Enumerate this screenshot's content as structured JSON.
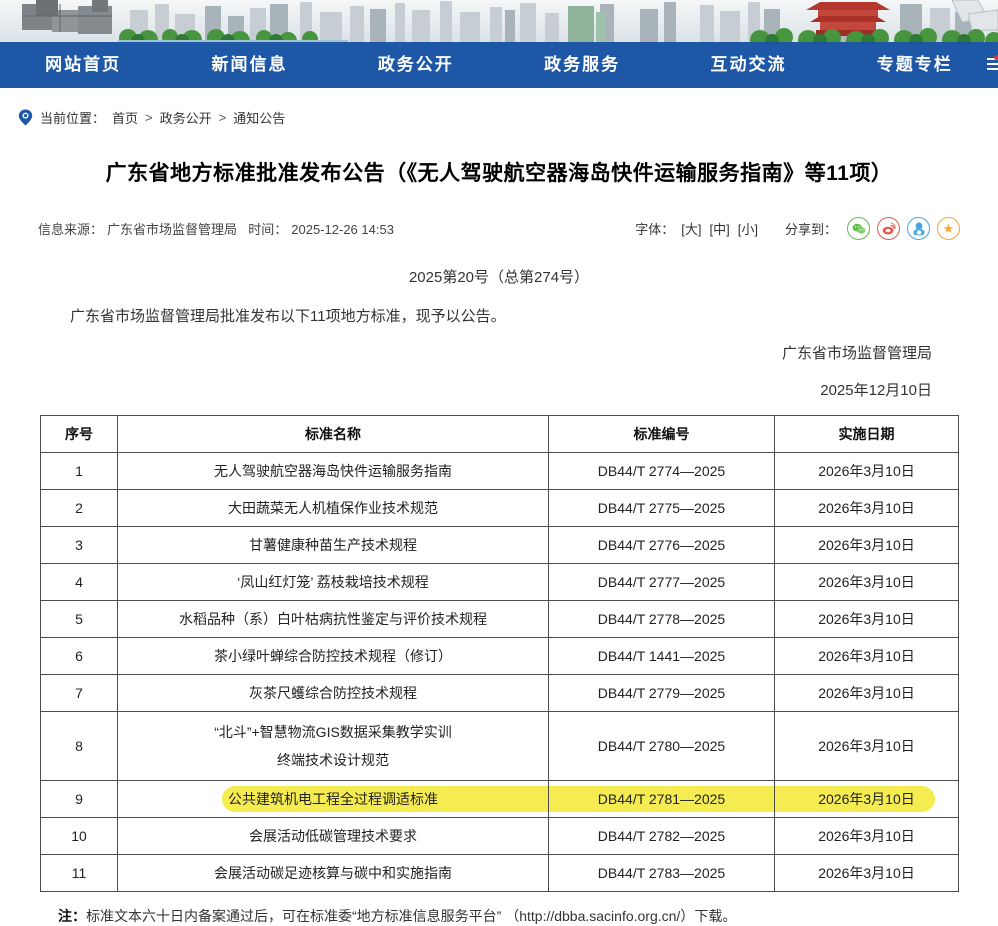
{
  "nav": {
    "items": [
      {
        "label": "网站首页"
      },
      {
        "label": "新闻信息"
      },
      {
        "label": "政务公开"
      },
      {
        "label": "政务服务"
      },
      {
        "label": "互动交流"
      },
      {
        "label": "专题专栏"
      }
    ]
  },
  "breadcrumb": {
    "prefix": "当前位置：",
    "items": [
      "首页",
      "政务公开",
      "通知公告"
    ],
    "separator": ">"
  },
  "article": {
    "title": "广东省地方标准批准发布公告（《无人驾驶航空器海岛快件运输服务指南》等11项）",
    "source_label": "信息来源：",
    "source": "广东省市场监督管理局",
    "time_label": "时间：",
    "time": "2025-12-26 14:53",
    "font_label": "字体：",
    "font_options": [
      "[大]",
      "[中]",
      "[小]"
    ],
    "share_label": "分享到：",
    "share_icons": [
      {
        "name": "wechat",
        "color": "#5fbe4a"
      },
      {
        "name": "weibo",
        "color": "#e6584c"
      },
      {
        "name": "qq",
        "color": "#45a6e3"
      },
      {
        "name": "qzone",
        "color": "#f0a830"
      }
    ],
    "doc_number": "2025第20号（总第274号）",
    "body": "广东省市场监督管理局批准发布以下11项地方标准，现予以公告。",
    "signature": "广东省市场监督管理局",
    "date": "2025年12月10日",
    "note_label": "注：",
    "note_text": "标准文本六十日内备案通过后，可在标准委“地方标准信息服务平台” （http://dbba.sacinfo.org.cn/）下载。"
  },
  "table": {
    "headers": [
      "序号",
      "标准名称",
      "标准编号",
      "实施日期"
    ],
    "highlight_color": "#f5ec51",
    "highlighted_row_no": "9",
    "rows": [
      {
        "no": "1",
        "name": "无人驾驶航空器海岛快件运输服务指南",
        "code": "DB44/T 2774—2025",
        "date": "2026年3月10日"
      },
      {
        "no": "2",
        "name": "大田蔬菜无人机植保作业技术规范",
        "code": "DB44/T 2775—2025",
        "date": "2026年3月10日"
      },
      {
        "no": "3",
        "name": "甘薯健康种苗生产技术规程",
        "code": "DB44/T 2776—2025",
        "date": "2026年3月10日"
      },
      {
        "no": "4",
        "name": "‘凤山红灯笼’ 荔枝栽培技术规程",
        "code": "DB44/T 2777—2025",
        "date": "2026年3月10日"
      },
      {
        "no": "5",
        "name": "水稻品种（系）白叶枯病抗性鉴定与评价技术规程",
        "code": "DB44/T 2778—2025",
        "date": "2026年3月10日"
      },
      {
        "no": "6",
        "name": "茶小绿叶蝉综合防控技术规程（修订）",
        "code": "DB44/T 1441—2025",
        "date": "2026年3月10日"
      },
      {
        "no": "7",
        "name": "灰茶尺蠖综合防控技术规程",
        "code": "DB44/T 2779—2025",
        "date": "2026年3月10日"
      },
      {
        "no": "8",
        "name": "“北斗”+智慧物流GIS数据采集教学实训\n终端技术设计规范",
        "code": "DB44/T 2780—2025",
        "date": "2026年3月10日"
      },
      {
        "no": "9",
        "name": "公共建筑机电工程全过程调适标准",
        "code": "DB44/T 2781—2025",
        "date": "2026年3月10日"
      },
      {
        "no": "10",
        "name": "会展活动低碳管理技术要求",
        "code": "DB44/T 2782—2025",
        "date": "2026年3月10日"
      },
      {
        "no": "11",
        "name": "会展活动碳足迹核算与碳中和实施指南",
        "code": "DB44/T 2783—2025",
        "date": "2026年3月10日"
      }
    ]
  },
  "colors": {
    "nav_blue": "#1d57a6",
    "highlight_yellow": "#f5ec51"
  }
}
